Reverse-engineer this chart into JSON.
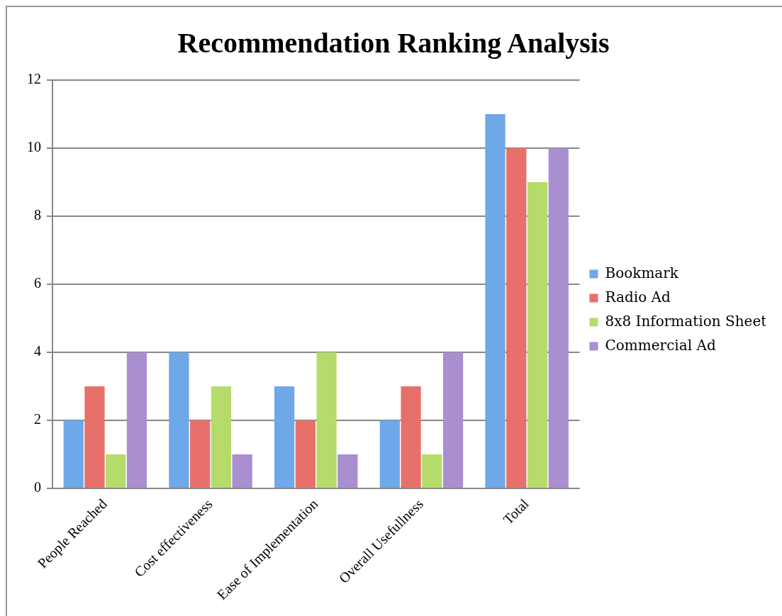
{
  "chart_data": {
    "type": "bar",
    "title": "Recommendation Ranking Analysis",
    "categories": [
      "People Reached",
      "Cost effectiveness",
      "Ease of Implementation",
      "Overall Usefullness",
      "Total"
    ],
    "series": [
      {
        "name": "Bookmark",
        "color": "#6fa8e8",
        "values": [
          2,
          4,
          3,
          2,
          11
        ]
      },
      {
        "name": "Radio Ad",
        "color": "#e8706a",
        "values": [
          3,
          2,
          2,
          3,
          10
        ]
      },
      {
        "name": "8x8 Information Sheet",
        "color": "#b5dc6a",
        "values": [
          1,
          3,
          4,
          1,
          9
        ]
      },
      {
        "name": "Commercial Ad",
        "color": "#a98fcf",
        "values": [
          4,
          1,
          1,
          4,
          10
        ]
      }
    ],
    "ylim": [
      0,
      12
    ],
    "yticks": [
      0,
      2,
      4,
      6,
      8,
      10,
      12
    ],
    "grid": "y",
    "legend": "right"
  }
}
